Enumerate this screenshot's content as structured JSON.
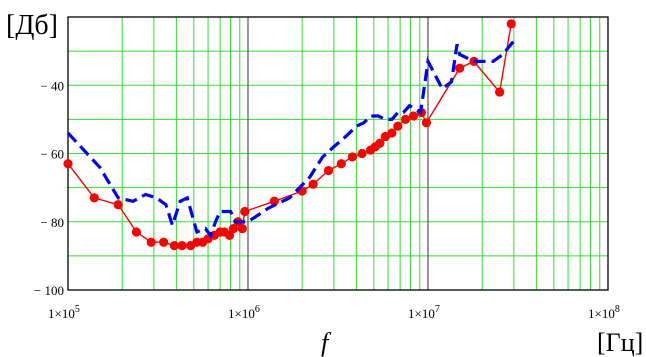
{
  "chart_data": {
    "type": "line",
    "x_scale": "log",
    "xlim": [
      100000,
      100000000
    ],
    "ylim": [
      -100,
      -20
    ],
    "grid": true,
    "ylabel": "[Дб]",
    "xlabel_symbol": "f",
    "xlabel_unit": "[Гц]",
    "y_ticks": [
      {
        "value": -40,
        "label": "− 40"
      },
      {
        "value": -60,
        "label": "− 60"
      },
      {
        "value": -80,
        "label": "− 80"
      },
      {
        "value": -100,
        "label": "− 100"
      }
    ],
    "x_ticks": [
      {
        "value": 100000,
        "label": "1×10",
        "exp": "5"
      },
      {
        "value": 1000000,
        "label": "1×10",
        "exp": "6"
      },
      {
        "value": 10000000,
        "label": "1×10",
        "exp": "7"
      },
      {
        "value": 100000000,
        "label": "1×10",
        "exp": "8"
      }
    ],
    "series": [
      {
        "style": "solid-markers",
        "color": "#ff0000",
        "x": [
          100000,
          140000,
          190000,
          240000,
          290000,
          340000,
          390000,
          430000,
          480000,
          520000,
          560000,
          600000,
          650000,
          700000,
          740000,
          790000,
          830000,
          880000,
          930000,
          960000,
          1400000,
          2000000,
          2300000,
          2800000,
          3300000,
          3800000,
          4300000,
          4800000,
          5100000,
          5400000,
          5800000,
          6300000,
          6800000,
          7500000,
          8300000,
          9200000,
          9800000,
          15000000,
          18000000,
          25000000,
          29000000
        ],
        "y": [
          -63,
          -73,
          -75,
          -83,
          -86,
          -86,
          -87,
          -87,
          -87,
          -86,
          -86,
          -85,
          -84,
          -83,
          -83,
          -84,
          -82,
          -80,
          -82,
          -77,
          -74,
          -71,
          -69,
          -65,
          -63,
          -61,
          -60,
          -59,
          -58,
          -57,
          -55,
          -54,
          -52,
          -50,
          -49,
          -48,
          -51,
          -35,
          -33,
          -42,
          -22
        ]
      },
      {
        "style": "dashed",
        "color": "#0000ff",
        "x": [
          100000,
          150000,
          190000,
          230000,
          270000,
          310000,
          350000,
          380000,
          420000,
          460000,
          520000,
          580000,
          620000,
          660000,
          700000,
          750000,
          800000,
          850000,
          900000,
          1000000,
          1300000,
          1700000,
          2200000,
          2600000,
          3000000,
          3500000,
          4000000,
          4400000,
          4800000,
          5300000,
          5800000,
          6300000,
          6800000,
          7300000,
          7900000,
          8500000,
          9100000,
          10000000,
          12000000,
          13500000,
          14500000,
          15000000,
          18000000,
          23000000,
          26000000,
          30000000
        ],
        "y": [
          -54,
          -64,
          -73,
          -74,
          -72,
          -73,
          -75,
          -81,
          -74,
          -73,
          -83,
          -82,
          -84,
          -80,
          -77,
          -77,
          -77,
          -80,
          -80,
          -80,
          -76,
          -73,
          -67,
          -61,
          -58,
          -55,
          -52,
          -51,
          -49,
          -49,
          -50,
          -50,
          -48,
          -48,
          -46,
          -47,
          -48,
          -33,
          -41,
          -39,
          -28,
          -31,
          -33,
          -33,
          -31,
          -27
        ]
      }
    ]
  }
}
